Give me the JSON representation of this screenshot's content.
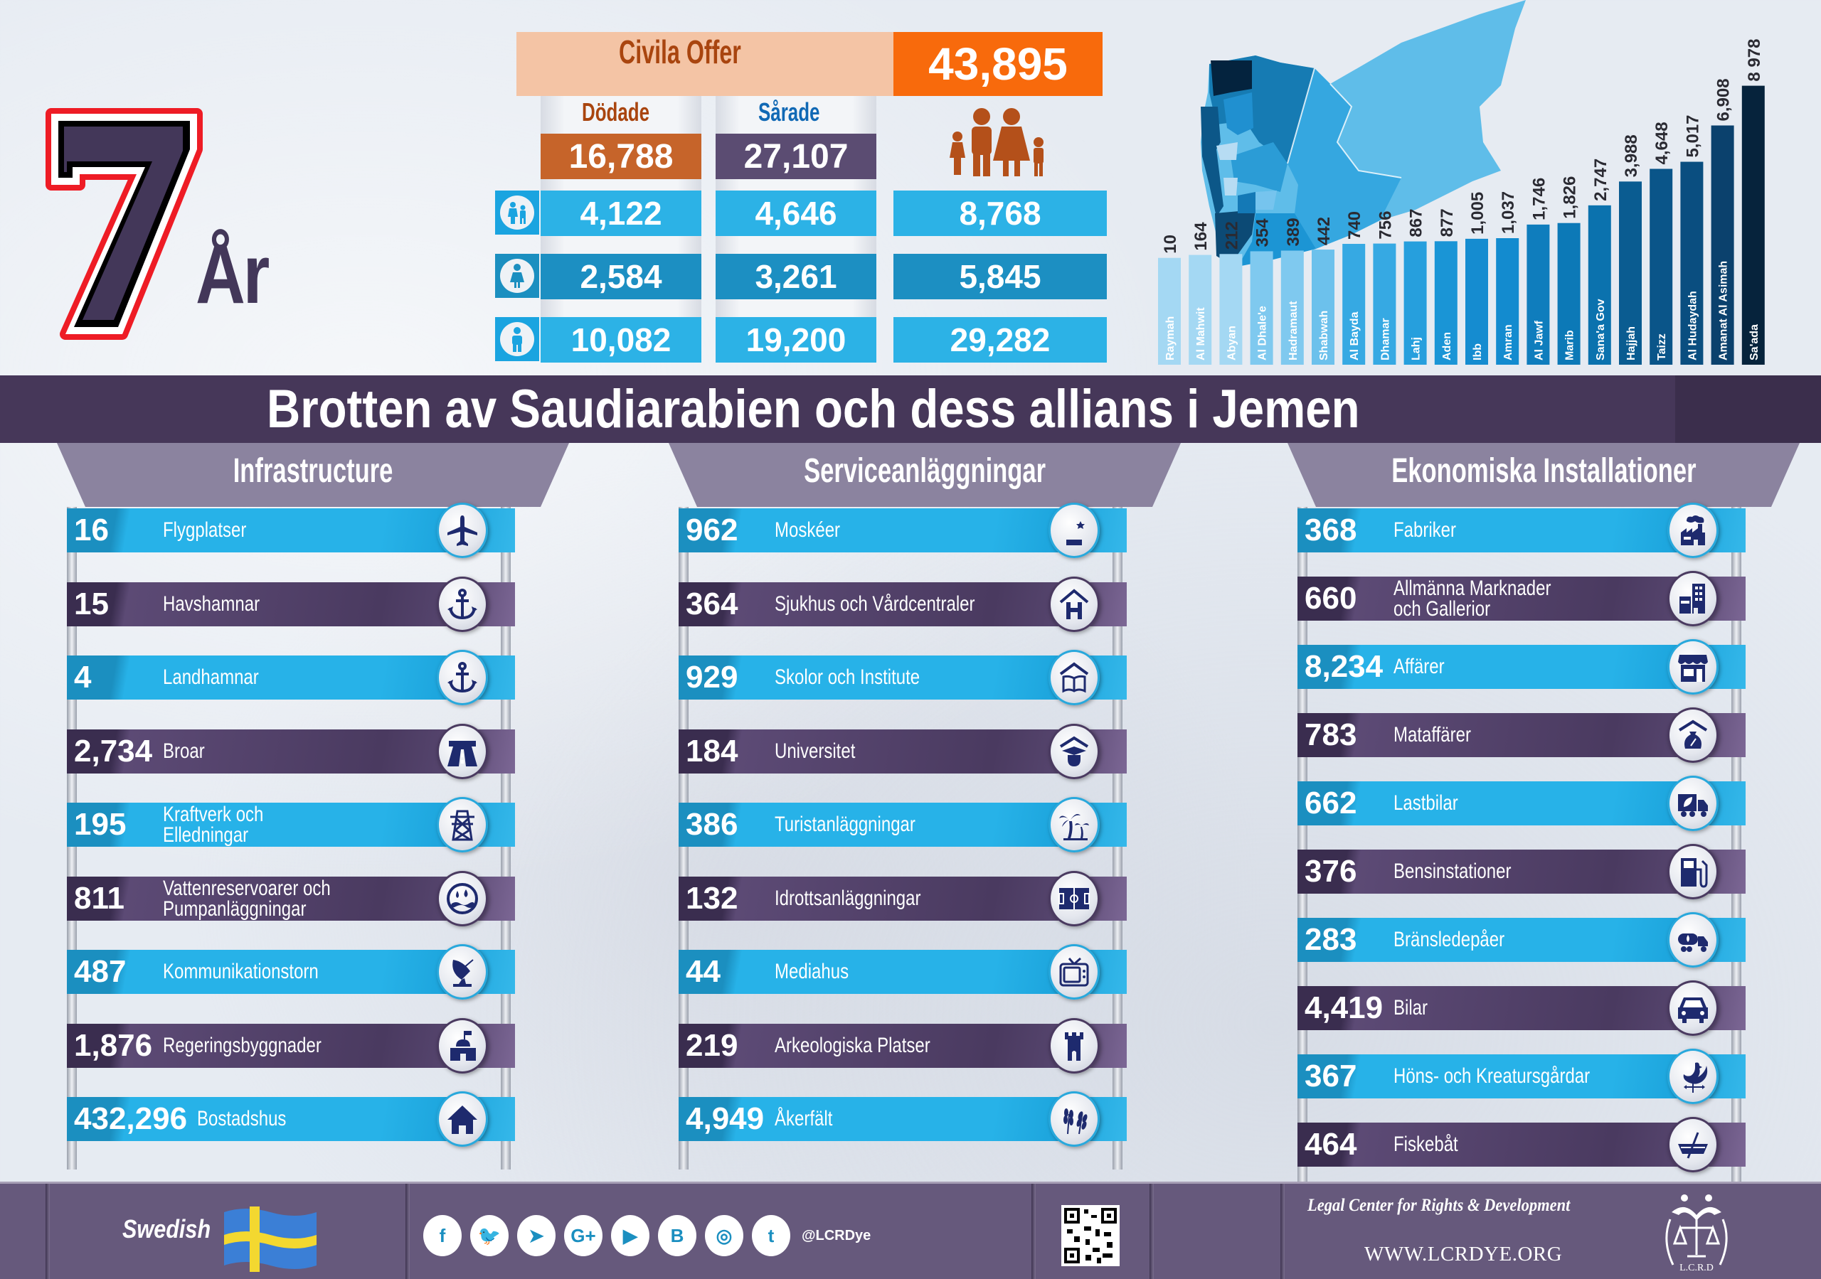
{
  "logo": {
    "number": "7",
    "unit": "År"
  },
  "casualties": {
    "title": "Civila Offer",
    "total": "43,895",
    "killed_label": "Dödade",
    "injured_label": "Sårade",
    "killed_total": "16,788",
    "injured_total": "27,107",
    "rows": [
      {
        "group_icon": "children-icon",
        "killed": "4,122",
        "injured": "4,646",
        "sum": "8,768"
      },
      {
        "group_icon": "woman-icon",
        "killed": "2,584",
        "injured": "3,261",
        "sum": "5,845"
      },
      {
        "group_icon": "man-icon",
        "killed": "10,082",
        "injured": "19,200",
        "sum": "29,282"
      }
    ],
    "colors": {
      "killed": "#c6642a",
      "injured": "#5b4c72",
      "total": "#f86a0c",
      "title": "#a9450f"
    }
  },
  "chart_data": {
    "type": "bar",
    "title": "",
    "xlabel": "",
    "ylabel": "",
    "categories": [
      "Raymah",
      "Al Mahwit",
      "Abyan",
      "Al Dhale'e",
      "Hadramaut",
      "Shabwah",
      "Al Bayda",
      "Dhamar",
      "Lahj",
      "Aden",
      "Ibb",
      "Amran",
      "Al Jawf",
      "Marib",
      "Sana'a Gov",
      "Hajjah",
      "Taizz",
      "Al Hudaydah",
      "Amanat Al Asimah",
      "Sa'ada"
    ],
    "values": [
      10,
      164,
      212,
      354,
      389,
      442,
      740,
      756,
      867,
      877,
      1005,
      1037,
      1746,
      1826,
      2747,
      3988,
      4648,
      5017,
      6908,
      8978
    ],
    "value_labels": [
      "10",
      "164",
      "212",
      "354",
      "389",
      "442",
      "740",
      "756",
      "867",
      "877",
      "1,005",
      "1,037",
      "1,746",
      "1,826",
      "2,747",
      "3,988",
      "4,648",
      "5,017",
      "6,908",
      "8 978"
    ],
    "ylim": [
      0,
      9000
    ],
    "grid": false,
    "orientation": "vertical-labels-rotated"
  },
  "banner": {
    "title": "Brotten av Saudiarabien och dess allians i Jemen"
  },
  "sections": [
    {
      "title": "Infrastructure",
      "items": [
        {
          "value": "16",
          "label": "Flygplatser",
          "icon": "airplane-icon"
        },
        {
          "value": "15",
          "label": "Havshamnar",
          "icon": "anchor-icon"
        },
        {
          "value": "4",
          "label": "Landhamnar",
          "icon": "anchor-icon"
        },
        {
          "value": "2,734",
          "label": "Broar",
          "icon": "bridge-icon"
        },
        {
          "value": "195",
          "label": "Kraftverk och",
          "label2": "Elledningar",
          "icon": "power-tower-icon"
        },
        {
          "value": "811",
          "label": "Vattenreservoarer och",
          "label2": "Pumpanläggningar",
          "icon": "water-icon"
        },
        {
          "value": "487",
          "label": "Kommunikationstorn",
          "icon": "satellite-dish-icon"
        },
        {
          "value": "1,876",
          "label": "Regeringsbyggnader",
          "icon": "government-building-icon"
        },
        {
          "value": "432,296",
          "label": "Bostadshus",
          "icon": "house-icon"
        }
      ]
    },
    {
      "title": "Serviceanläggningar",
      "items": [
        {
          "value": "962",
          "label": "Moskéer",
          "icon": "mosque-icon"
        },
        {
          "value": "364",
          "label": "Sjukhus och Vårdcentraler",
          "icon": "hospital-icon"
        },
        {
          "value": "929",
          "label": "Skolor och Institute",
          "icon": "school-icon"
        },
        {
          "value": "184",
          "label": "Universitet",
          "icon": "graduation-icon"
        },
        {
          "value": "386",
          "label": "Turistanläggningar",
          "icon": "palm-tree-icon"
        },
        {
          "value": "132",
          "label": "Idrottsanläggningar",
          "icon": "sports-field-icon"
        },
        {
          "value": "44",
          "label": "Mediahus",
          "icon": "tv-icon"
        },
        {
          "value": "219",
          "label": "Arkeologiska Platser",
          "icon": "castle-tower-icon"
        },
        {
          "value": "4,949",
          "label": "Åkerfält",
          "icon": "wheat-icon"
        }
      ]
    },
    {
      "title": "Ekonomiska Installationer",
      "items": [
        {
          "value": "368",
          "label": "Fabriker",
          "icon": "factory-icon"
        },
        {
          "value": "660",
          "label": "Allmänna Marknader",
          "label2": "och Gallerior",
          "icon": "mall-icon"
        },
        {
          "value": "8,234",
          "label": "Affärer",
          "icon": "shop-icon"
        },
        {
          "value": "783",
          "label": "Mataffärer",
          "icon": "food-store-icon"
        },
        {
          "value": "662",
          "label": "Lastbilar",
          "icon": "truck-icon"
        },
        {
          "value": "376",
          "label": "Bensinstationer",
          "icon": "gas-pump-icon"
        },
        {
          "value": "283",
          "label": "Bränsledepåer",
          "icon": "fuel-tanker-icon"
        },
        {
          "value": "4,419",
          "label": "Bilar",
          "icon": "car-icon"
        },
        {
          "value": "367",
          "label": "Höns- och Kreatursgårdar",
          "icon": "rooster-icon"
        },
        {
          "value": "464",
          "label": "Fiskebåt",
          "icon": "boat-icon"
        }
      ]
    }
  ],
  "footer": {
    "language": "Swedish",
    "social": [
      {
        "name": "facebook-icon",
        "glyph": "f"
      },
      {
        "name": "twitter-icon",
        "glyph": "🐦"
      },
      {
        "name": "telegram-icon",
        "glyph": "➤"
      },
      {
        "name": "google-plus-icon",
        "glyph": "G+"
      },
      {
        "name": "youtube-icon",
        "glyph": "▶"
      },
      {
        "name": "blogger-icon",
        "glyph": "B"
      },
      {
        "name": "instagram-icon",
        "glyph": "◎"
      },
      {
        "name": "tumblr-icon",
        "glyph": "t"
      }
    ],
    "handle": "@LCRDye",
    "org_name": "Legal Center for Rights & Development",
    "url": "WWW.LCRDYE.ORG",
    "org_logo_text": "L.C.R.D"
  },
  "colors": {
    "purple": "#463759",
    "blue": "#27b2e8",
    "icon_navy": "#1e2a6e",
    "orange": "#f86a0c"
  }
}
